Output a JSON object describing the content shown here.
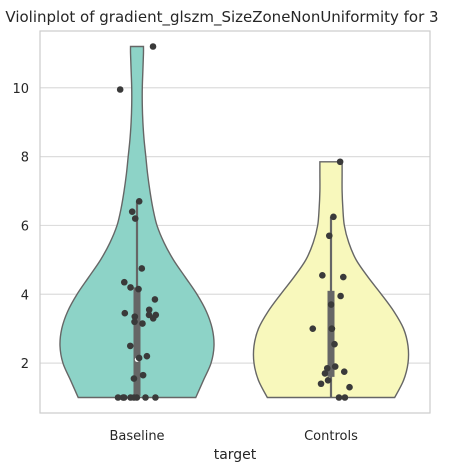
{
  "chart_data": {
    "type": "violin",
    "title": "Violinplot of gradient_glszm_SizeZoneNonUniformity for 3",
    "xlabel": "target",
    "ylabel": "",
    "categories": [
      "Baseline",
      "Controls"
    ],
    "ylim": [
      0.55,
      11.65
    ],
    "yticks": [
      2,
      4,
      6,
      8,
      10
    ],
    "grid": true,
    "cut": true,
    "colors": [
      "#8dd3c7",
      "#f8f8bc"
    ],
    "series": [
      {
        "category": "Baseline",
        "points": [
          11.2,
          9.95,
          6.7,
          6.4,
          6.2,
          4.75,
          4.35,
          4.2,
          4.15,
          3.85,
          3.55,
          3.45,
          3.4,
          3.4,
          3.35,
          3.3,
          3.2,
          3.15,
          2.5,
          2.2,
          2.15,
          1.65,
          1.55,
          1.0,
          1.0,
          1.0,
          1.0,
          1.0,
          1.0,
          1.0,
          1.0
        ],
        "quartiles": [
          1.05,
          2.1,
          4.2
        ],
        "whisker": [
          1.0,
          6.7
        ],
        "density": [
          [
            1.0,
            1.0
          ],
          [
            1.5,
            1.13
          ],
          [
            2.0,
            1.26
          ],
          [
            2.5,
            1.31
          ],
          [
            3.0,
            1.28
          ],
          [
            3.5,
            1.18
          ],
          [
            4.0,
            1.02
          ],
          [
            4.5,
            0.82
          ],
          [
            5.0,
            0.62
          ],
          [
            5.5,
            0.46
          ],
          [
            6.0,
            0.34
          ],
          [
            6.5,
            0.27
          ],
          [
            7.0,
            0.22
          ],
          [
            7.5,
            0.18
          ],
          [
            8.0,
            0.15
          ],
          [
            8.5,
            0.12
          ],
          [
            9.0,
            0.1
          ],
          [
            9.5,
            0.09
          ],
          [
            10.0,
            0.09
          ],
          [
            10.5,
            0.1
          ],
          [
            11.0,
            0.11
          ],
          [
            11.2,
            0.11
          ]
        ]
      },
      {
        "category": "Controls",
        "points": [
          7.85,
          6.25,
          5.7,
          4.55,
          4.5,
          3.95,
          3.7,
          3.0,
          3.0,
          3.0,
          2.55,
          1.9,
          1.85,
          1.75,
          1.7,
          1.5,
          1.4,
          1.3,
          1.0,
          1.0
        ],
        "quartiles": [
          1.6,
          3.0,
          4.1
        ],
        "whisker": [
          1.0,
          6.25
        ],
        "density": [
          [
            1.0,
            0.86
          ],
          [
            1.5,
            0.98
          ],
          [
            2.0,
            1.04
          ],
          [
            2.5,
            1.04
          ],
          [
            3.0,
            0.98
          ],
          [
            3.5,
            0.85
          ],
          [
            4.0,
            0.68
          ],
          [
            4.5,
            0.5
          ],
          [
            5.0,
            0.34
          ],
          [
            5.5,
            0.24
          ],
          [
            6.0,
            0.18
          ],
          [
            6.5,
            0.16
          ],
          [
            7.0,
            0.15
          ],
          [
            7.5,
            0.15
          ],
          [
            7.85,
            0.15
          ]
        ]
      }
    ]
  }
}
